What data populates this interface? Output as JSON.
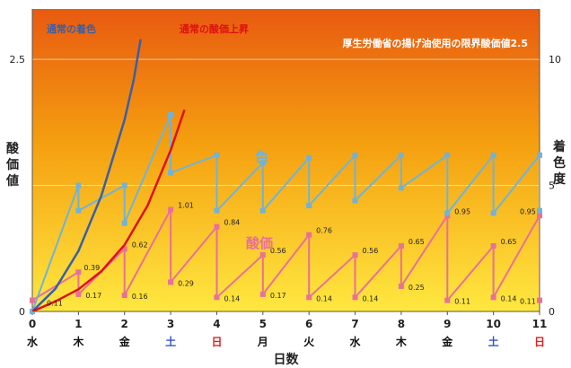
{
  "chart_data": {
    "type": "line",
    "title": "厚生労働省の揚げ油使用の限界酸価値2.5",
    "xlabel": "日数",
    "ylabel_left": "酸価値",
    "ylabel_right": "着色度",
    "ylim_left": [
      0,
      2.5
    ],
    "yticks_left": [
      "0",
      "2.5"
    ],
    "ylim_right": [
      0,
      10
    ],
    "yticks_right": [
      "0",
      "5",
      "10"
    ],
    "xlim": [
      0,
      11
    ],
    "xticks": [
      "0",
      "1",
      "2",
      "3",
      "4",
      "5",
      "6",
      "7",
      "8",
      "9",
      "10",
      "11"
    ],
    "weekdays": [
      "水",
      "木",
      "金",
      "土",
      "日",
      "月",
      "火",
      "水",
      "木",
      "金",
      "土",
      "日"
    ],
    "weekday_colors": [
      "#111111",
      "#111111",
      "#111111",
      "#3355cc",
      "#dd2222",
      "#111111",
      "#111111",
      "#111111",
      "#111111",
      "#111111",
      "#3355cc",
      "#dd2222"
    ],
    "grid": true,
    "series": [
      {
        "name": "酸価",
        "axis": "left",
        "color": "#e8709a",
        "x": [
          0,
          0,
          1,
          1,
          2,
          2,
          3,
          3,
          4,
          4,
          5,
          5,
          6,
          6,
          7,
          7,
          8,
          8,
          9,
          9,
          10,
          10,
          11,
          11
        ],
        "y": [
          0.11,
          0.11,
          0.39,
          0.17,
          0.62,
          0.16,
          1.01,
          0.29,
          0.84,
          0.14,
          0.56,
          0.17,
          0.76,
          0.14,
          0.56,
          0.14,
          0.65,
          0.25,
          0.95,
          0.11,
          0.65,
          0.14,
          0.95,
          0.11
        ]
      },
      {
        "name": "着色",
        "axis": "right",
        "color": "#6fb3dc",
        "x": [
          0,
          1,
          1,
          2,
          2,
          3,
          3,
          4,
          4,
          5,
          5,
          6,
          6,
          7,
          7,
          8,
          8,
          9,
          9,
          10,
          10,
          11,
          11
        ],
        "y": [
          0,
          5.0,
          4.0,
          5.0,
          3.5,
          7.8,
          5.5,
          6.2,
          4.0,
          5.9,
          4.0,
          6.1,
          4.2,
          6.2,
          4.4,
          6.2,
          4.9,
          6.2,
          3.9,
          6.2,
          3.9,
          6.2,
          4.0
        ]
      },
      {
        "name": "通常の着色",
        "axis": "right",
        "color": "#3a5fa8",
        "x": [
          0,
          0.5,
          1,
          1.5,
          2,
          2.2,
          2.35
        ],
        "y": [
          0,
          0.9,
          2.4,
          4.6,
          7.6,
          9.2,
          10.8
        ]
      },
      {
        "name": "通常の酸価上昇",
        "axis": "left",
        "color": "#dd1111",
        "x": [
          0,
          0.5,
          1,
          1.5,
          2,
          2.5,
          3,
          3.3
        ],
        "y": [
          0,
          0.1,
          0.22,
          0.4,
          0.66,
          1.05,
          1.6,
          2.0
        ]
      }
    ],
    "data_labels": [
      "0.11",
      "0.39",
      "0.17",
      "0.62",
      "0.16",
      "1.01",
      "0.29",
      "0.84",
      "0.14",
      "0.56",
      "0.17",
      "0.76",
      "0.14",
      "0.56",
      "0.14",
      "0.65",
      "0.25",
      "0.95",
      "0.11",
      "0.65",
      "0.14",
      "0.95",
      "0.11"
    ],
    "annotations": {
      "color_label": "色",
      "acid_label": "酸価",
      "normal_color_label": "通常の着色",
      "normal_acid_label": "通常の酸価上昇"
    },
    "colors": {
      "bg_top": "#e85a10",
      "bg_mid": "#f5a010",
      "bg_bottom": "#ffe840",
      "title_color": "#ffffff",
      "normal_color_label": "#3a5fa8",
      "normal_acid_label": "#dd1111",
      "acid_annotation": "#e8709a",
      "color_annotation": "#6fb3dc"
    }
  }
}
